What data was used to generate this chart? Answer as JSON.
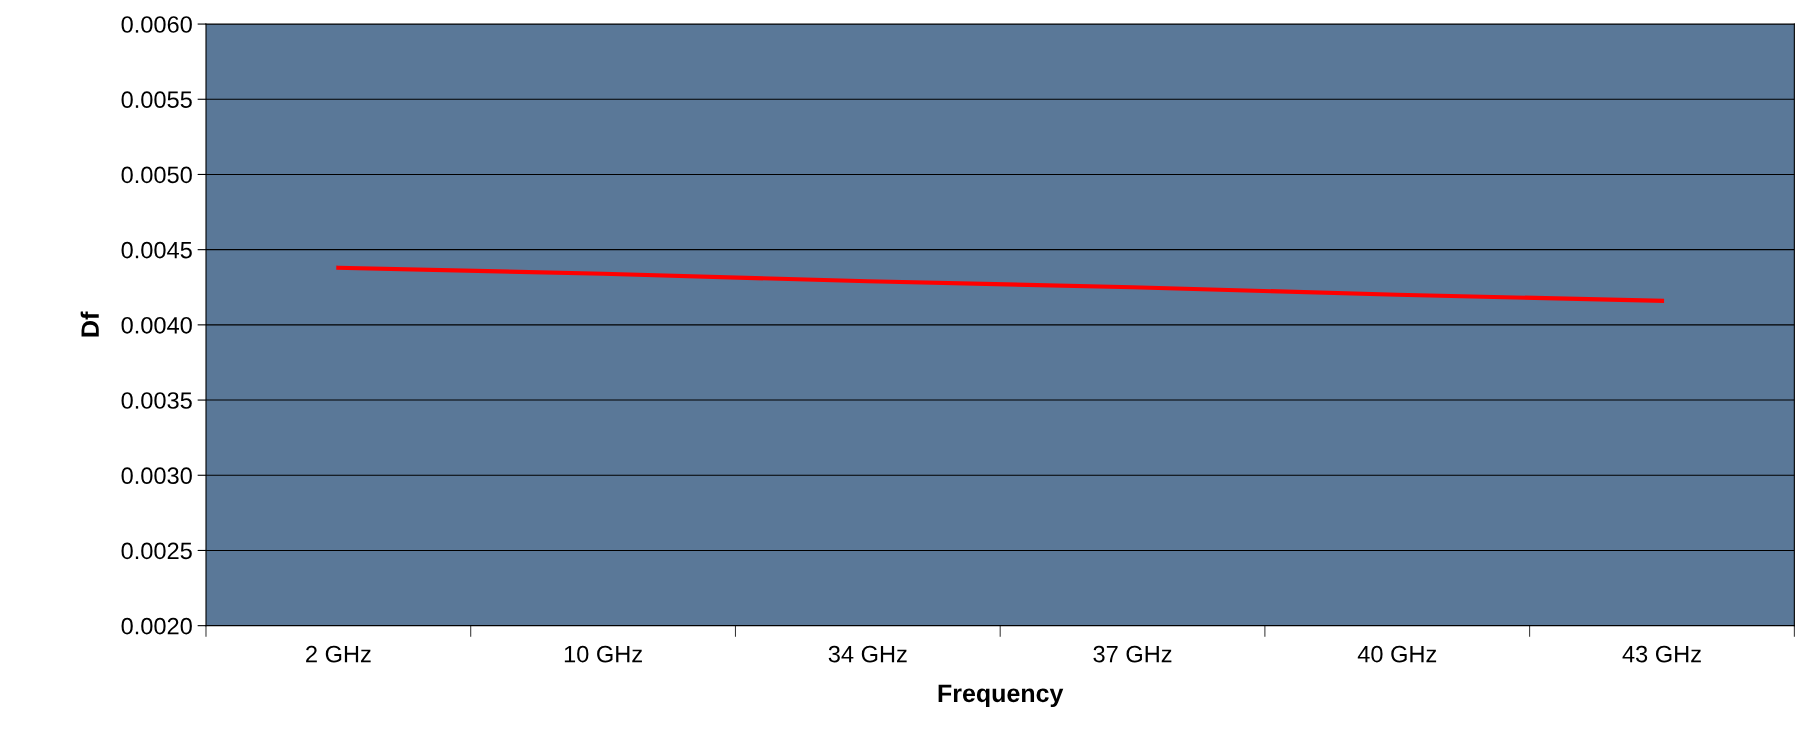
{
  "chart_data": {
    "type": "line",
    "xlabel": "Frequency",
    "ylabel": "Df",
    "categories": [
      "2 GHz",
      "10 GHz",
      "34 GHz",
      "37 GHz",
      "40 GHz",
      "43 GHz"
    ],
    "series": [
      {
        "color": "#ff0000",
        "values": [
          0.00438,
          0.00434,
          0.00429,
          0.00425,
          0.0042,
          0.00416
        ]
      }
    ],
    "ylim": [
      0.002,
      0.006
    ],
    "yticks": [
      {
        "value": 0.002,
        "label": "0.0020"
      },
      {
        "value": 0.0025,
        "label": "0.0025"
      },
      {
        "value": 0.003,
        "label": "0.0030"
      },
      {
        "value": 0.0035,
        "label": "0.0035"
      },
      {
        "value": 0.004,
        "label": "0.0040"
      },
      {
        "value": 0.0045,
        "label": "0.0045"
      },
      {
        "value": 0.005,
        "label": "0.0050"
      },
      {
        "value": 0.0055,
        "label": "0.0055"
      },
      {
        "value": 0.006,
        "label": "0.0060"
      }
    ],
    "grid": "y",
    "legend": false,
    "marker": "none",
    "line_style": "solid"
  }
}
